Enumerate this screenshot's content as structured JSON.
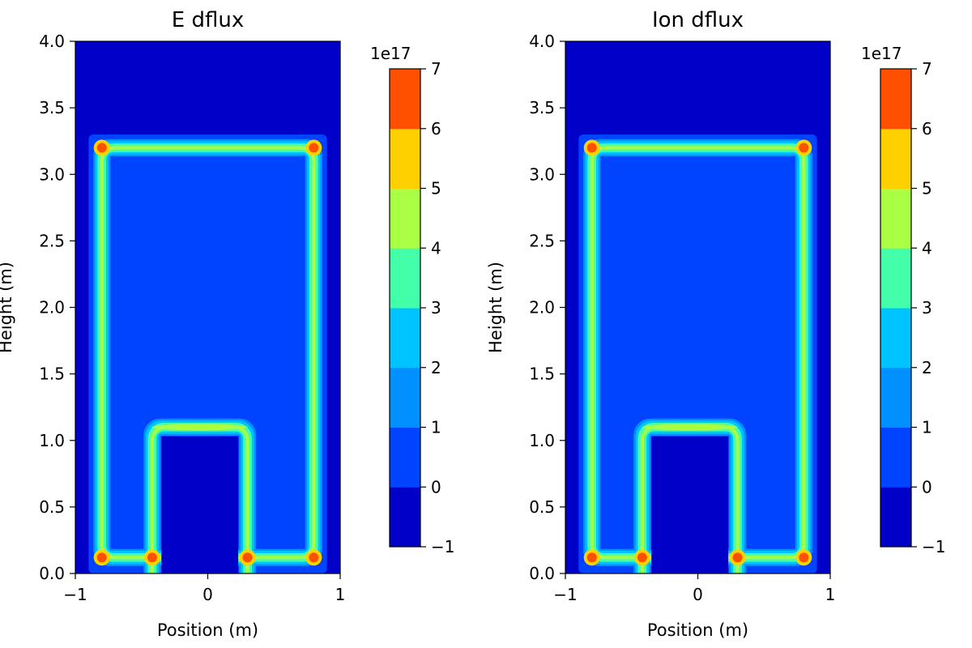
{
  "chart_data": [
    {
      "type": "heatmap",
      "subtype": "filled-contour",
      "title": "E dflux",
      "xlabel": "Position (m)",
      "ylabel": "Height (m)",
      "xlim": [
        -1,
        1
      ],
      "ylim": [
        0,
        4
      ],
      "x_ticks": [
        "−1",
        "0",
        "1"
      ],
      "y_ticks": [
        "0.0",
        "0.5",
        "1.0",
        "1.5",
        "2.0",
        "2.5",
        "3.0",
        "3.5",
        "4.0"
      ],
      "grid": false,
      "structure": {
        "outer_loop": {
          "x_range": [
            -0.8,
            0.8
          ],
          "y_range": [
            0.12,
            3.2
          ]
        },
        "inner_arch": {
          "x_range": [
            -0.42,
            0.3
          ],
          "y_range": [
            0.0,
            1.1
          ]
        },
        "hotspots": [
          [
            -0.8,
            0.12
          ],
          [
            -0.42,
            0.12
          ],
          [
            0.3,
            0.12
          ],
          [
            0.8,
            0.12
          ],
          [
            -0.8,
            3.2
          ],
          [
            0.8,
            3.2
          ]
        ],
        "hotspot_level": 6,
        "band_level": 3,
        "arch_top_level": 4,
        "background_level": 0,
        "exterior_level": -1
      },
      "colorbar": {
        "levels": [
          -1,
          0,
          1,
          2,
          3,
          4,
          5,
          6,
          7
        ],
        "tick_labels": [
          "−1",
          "0",
          "1",
          "2",
          "3",
          "4",
          "5",
          "6",
          "7"
        ],
        "offset_label": "1e17",
        "colormap": "jet",
        "colors": [
          "#0000c8",
          "#0044ff",
          "#0090ff",
          "#00c4ff",
          "#44ffaa",
          "#aaff44",
          "#ffd000",
          "#ff5000",
          "#c80000"
        ]
      }
    },
    {
      "type": "heatmap",
      "subtype": "filled-contour",
      "title": "Ion dflux",
      "xlabel": "Position (m)",
      "ylabel": "Height (m)",
      "xlim": [
        -1,
        1
      ],
      "ylim": [
        0,
        4
      ],
      "x_ticks": [
        "−1",
        "0",
        "1"
      ],
      "y_ticks": [
        "0.0",
        "0.5",
        "1.0",
        "1.5",
        "2.0",
        "2.5",
        "3.0",
        "3.5",
        "4.0"
      ],
      "grid": false,
      "structure": {
        "outer_loop": {
          "x_range": [
            -0.8,
            0.8
          ],
          "y_range": [
            0.12,
            3.2
          ]
        },
        "inner_arch": {
          "x_range": [
            -0.42,
            0.3
          ],
          "y_range": [
            0.0,
            1.1
          ]
        },
        "hotspots": [
          [
            -0.8,
            0.12
          ],
          [
            -0.42,
            0.12
          ],
          [
            0.3,
            0.12
          ],
          [
            0.8,
            0.12
          ],
          [
            -0.8,
            3.2
          ],
          [
            0.8,
            3.2
          ]
        ],
        "hotspot_level": 6,
        "band_level": 3,
        "arch_top_level": 4,
        "background_level": 0,
        "exterior_level": -1
      },
      "colorbar": {
        "levels": [
          -1,
          0,
          1,
          2,
          3,
          4,
          5,
          6,
          7
        ],
        "tick_labels": [
          "−1",
          "0",
          "1",
          "2",
          "3",
          "4",
          "5",
          "6",
          "7"
        ],
        "offset_label": "1e17",
        "colormap": "jet",
        "colors": [
          "#0000c8",
          "#0044ff",
          "#0090ff",
          "#00c4ff",
          "#44ffaa",
          "#aaff44",
          "#ffd000",
          "#ff5000",
          "#c80000"
        ]
      }
    }
  ]
}
